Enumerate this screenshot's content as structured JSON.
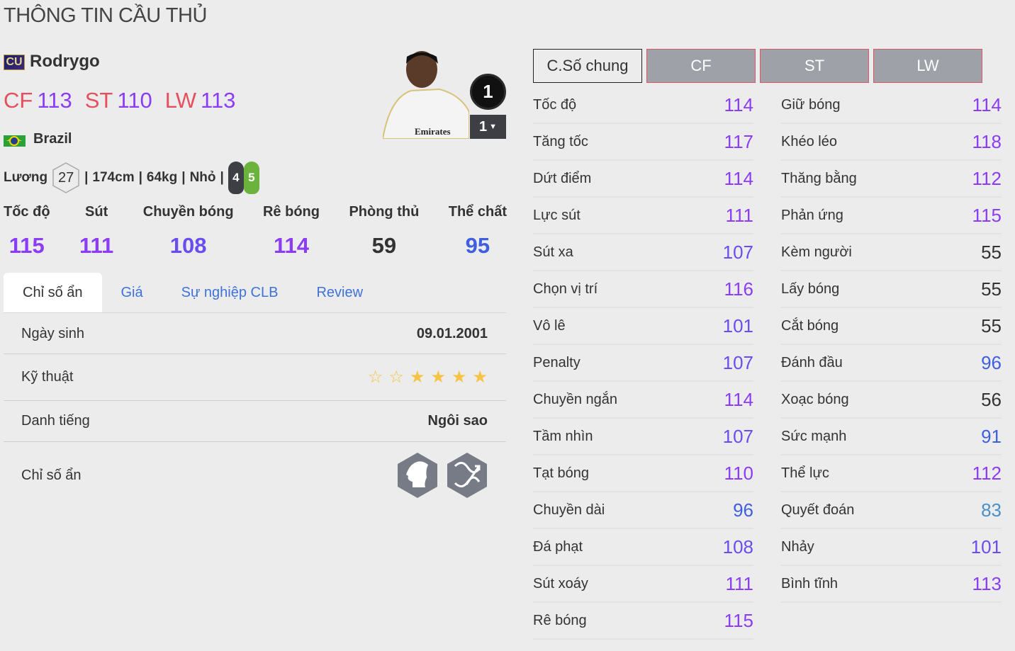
{
  "page_title": "THÔNG TIN CẦU THỦ",
  "player": {
    "season_badge": "CU",
    "name": "Rodrygo",
    "country": "Brazil",
    "rank_badge": "1",
    "upgrade_level": "1",
    "positions": [
      {
        "pos": "CF",
        "ovr": "113"
      },
      {
        "pos": "ST",
        "ovr": "110"
      },
      {
        "pos": "LW",
        "ovr": "113"
      }
    ],
    "salary_label": "Lương",
    "salary": "27",
    "height": "174cm",
    "weight": "64kg",
    "body_type": "Nhỏ",
    "weak_foot": "4",
    "strong_foot": "5"
  },
  "categories": [
    {
      "label": "Tốc độ",
      "value": "115"
    },
    {
      "label": "Sút",
      "value": "111"
    },
    {
      "label": "Chuyền bóng",
      "value": "108"
    },
    {
      "label": "Rê bóng",
      "value": "114"
    },
    {
      "label": "Phòng thủ",
      "value": "59"
    },
    {
      "label": "Thể chất",
      "value": "95"
    }
  ],
  "left_tabs": [
    "Chỉ số ẩn",
    "Giá",
    "Sự nghiệp CLB",
    "Review"
  ],
  "info": {
    "birth_label": "Ngày sinh",
    "birth": "09.01.2001",
    "skill_label": "Kỹ thuật",
    "skill_stars": 4,
    "skill_max": 6,
    "fame_label": "Danh tiếng",
    "fame": "Ngôi sao",
    "traits_label": "Chỉ số ẩn",
    "traits": [
      "star-head-icon",
      "dribble-path-icon"
    ]
  },
  "stat_tabs": [
    "C.Số chung",
    "CF",
    "ST",
    "LW"
  ],
  "stats_col1": [
    [
      "Tốc độ",
      "114"
    ],
    [
      "Tăng tốc",
      "117"
    ],
    [
      "Dứt điểm",
      "114"
    ],
    [
      "Lực sút",
      "111"
    ],
    [
      "Sút xa",
      "107"
    ],
    [
      "Chọn vị trí",
      "116"
    ],
    [
      "Vô lê",
      "101"
    ],
    [
      "Penalty",
      "107"
    ],
    [
      "Chuyền ngắn",
      "114"
    ],
    [
      "Tầm nhìn",
      "107"
    ],
    [
      "Tạt bóng",
      "110"
    ],
    [
      "Chuyền dài",
      "96"
    ],
    [
      "Đá phạt",
      "108"
    ],
    [
      "Sút xoáy",
      "111"
    ],
    [
      "Rê bóng",
      "115"
    ]
  ],
  "stats_col2": [
    [
      "Giữ bóng",
      "114"
    ],
    [
      "Khéo léo",
      "118"
    ],
    [
      "Thăng bằng",
      "112"
    ],
    [
      "Phản ứng",
      "115"
    ],
    [
      "Kèm người",
      "55"
    ],
    [
      "Lấy bóng",
      "55"
    ],
    [
      "Cắt bóng",
      "55"
    ],
    [
      "Đánh đầu",
      "96"
    ],
    [
      "Xoạc bóng",
      "56"
    ],
    [
      "Sức mạnh",
      "91"
    ],
    [
      "Thể lực",
      "112"
    ],
    [
      "Quyết đoán",
      "83"
    ],
    [
      "Nhảy",
      "101"
    ],
    [
      "Bình tĩnh",
      "113"
    ]
  ],
  "colors": {
    "ge110": "#8b3cf7",
    "ge100": "#6a4cf0",
    "ge90": "#3f5fe0",
    "ge80": "#4a90c8",
    "low": "#333333",
    "position": "#e5505e"
  }
}
